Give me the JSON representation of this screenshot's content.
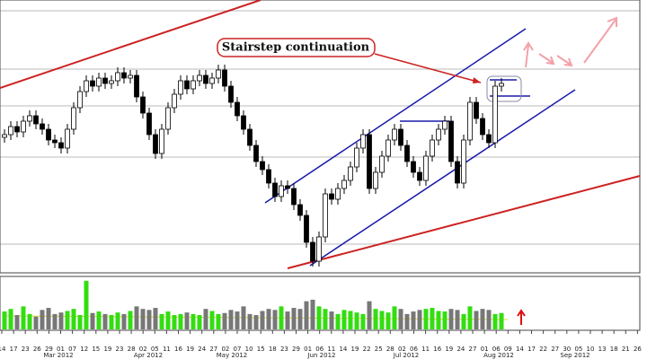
{
  "chart_data": {
    "type": "candlestick",
    "annotation": "Stairstep continuation",
    "up_color": "#33dd11",
    "down_color": "#777777",
    "ylim": [
      0,
      100
    ],
    "vlim": [
      0,
      100
    ],
    "x_tick_labels": [
      "14",
      "17",
      "23",
      "26",
      "29",
      "01",
      "07",
      "12",
      "15",
      "19",
      "23",
      "28",
      "02",
      "05",
      "11",
      "16",
      "19",
      "24",
      "27",
      "02",
      "07",
      "10",
      "15",
      "18",
      "23",
      "29",
      "01",
      "06",
      "11",
      "14",
      "19",
      "22",
      "25",
      "28",
      "02",
      "06",
      "11",
      "16",
      "19",
      "24",
      "27",
      "01",
      "06",
      "09",
      "14",
      "17",
      "22",
      "27",
      "30",
      "05",
      "10",
      "13",
      "18",
      "21",
      "26"
    ],
    "month_labels": [
      "Mar 2012",
      "Apr 2012",
      "May 2012",
      "Jun 2012",
      "Jul 2012",
      "Aug 2012",
      "Sep 2012"
    ],
    "open": [
      49,
      50,
      53,
      51,
      55,
      57,
      54,
      52,
      48,
      47,
      45,
      52,
      60,
      66,
      70,
      68,
      71,
      69,
      70,
      73,
      71,
      72,
      64,
      58,
      50,
      43,
      52,
      60,
      65,
      70,
      67,
      70,
      72,
      69,
      71,
      74,
      68,
      62,
      57,
      52,
      46,
      40,
      37,
      32,
      27,
      31,
      30,
      24,
      20,
      10,
      3,
      12,
      28,
      26,
      30,
      33,
      38,
      45,
      50,
      30,
      36,
      42,
      48,
      52,
      46,
      40,
      36,
      33,
      42,
      48,
      52,
      55,
      40,
      32,
      48,
      62,
      56,
      50,
      47,
      68
    ],
    "high": [
      52,
      55,
      55,
      57,
      59,
      59,
      56,
      54,
      50,
      49,
      54,
      62,
      68,
      72,
      72,
      73,
      73,
      72,
      75,
      75,
      74,
      74,
      66,
      60,
      52,
      54,
      62,
      67,
      72,
      72,
      72,
      74,
      74,
      73,
      76,
      76,
      70,
      64,
      59,
      54,
      48,
      42,
      39,
      34,
      33,
      33,
      32,
      26,
      22,
      12,
      14,
      30,
      30,
      32,
      35,
      40,
      47,
      52,
      52,
      38,
      44,
      50,
      54,
      54,
      48,
      42,
      38,
      44,
      50,
      54,
      57,
      57,
      42,
      50,
      64,
      64,
      58,
      52,
      70,
      71
    ],
    "low": [
      47,
      48,
      49,
      49,
      53,
      52,
      50,
      46,
      45,
      43,
      43,
      50,
      58,
      64,
      66,
      66,
      67,
      67,
      68,
      69,
      69,
      62,
      56,
      48,
      41,
      41,
      50,
      58,
      63,
      65,
      65,
      68,
      67,
      67,
      69,
      66,
      60,
      55,
      50,
      44,
      38,
      35,
      30,
      25,
      25,
      28,
      22,
      18,
      8,
      1,
      1,
      10,
      24,
      24,
      28,
      31,
      36,
      43,
      28,
      28,
      34,
      40,
      46,
      44,
      38,
      34,
      31,
      31,
      40,
      46,
      50,
      38,
      30,
      30,
      46,
      54,
      48,
      45,
      45,
      66
    ],
    "close": [
      50,
      53,
      51,
      55,
      57,
      54,
      52,
      48,
      47,
      45,
      52,
      60,
      66,
      70,
      68,
      71,
      69,
      70,
      73,
      71,
      72,
      64,
      58,
      50,
      43,
      52,
      60,
      65,
      70,
      67,
      70,
      72,
      69,
      71,
      74,
      68,
      62,
      57,
      52,
      46,
      40,
      37,
      32,
      27,
      31,
      30,
      24,
      20,
      10,
      3,
      12,
      28,
      26,
      30,
      33,
      38,
      45,
      50,
      30,
      36,
      42,
      48,
      52,
      46,
      40,
      36,
      33,
      42,
      48,
      52,
      55,
      40,
      32,
      48,
      62,
      56,
      50,
      47,
      68,
      69
    ],
    "volume": [
      35,
      40,
      28,
      45,
      30,
      25,
      38,
      42,
      30,
      33,
      36,
      40,
      28,
      95,
      32,
      35,
      30,
      28,
      33,
      30,
      36,
      45,
      40,
      38,
      42,
      30,
      35,
      28,
      30,
      33,
      30,
      28,
      40,
      36,
      30,
      32,
      38,
      35,
      45,
      30,
      28,
      36,
      40,
      38,
      45,
      35,
      42,
      40,
      55,
      58,
      45,
      40,
      35,
      30,
      38,
      36,
      33,
      30,
      55,
      40,
      36,
      33,
      45,
      40,
      30,
      35,
      38,
      40,
      42,
      36,
      35,
      40,
      38,
      30,
      45,
      36,
      40,
      38,
      30,
      32
    ]
  }
}
